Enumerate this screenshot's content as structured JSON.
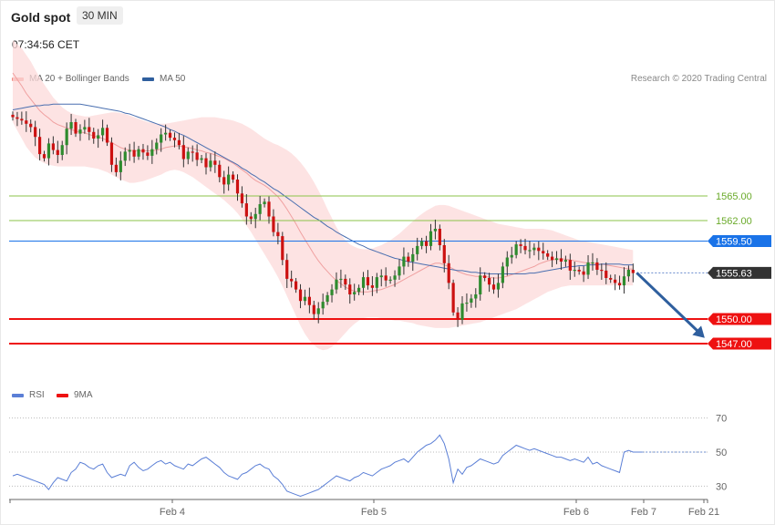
{
  "header": {
    "title": "Gold spot",
    "timeframe": "30 MIN",
    "time": "07:34:56 CET"
  },
  "legend": {
    "ma20_label": "MA 20 + Bollinger Bands",
    "ma20_color": "#f28b82",
    "ma50_label": "MA 50",
    "ma50_color": "#2f5f9e"
  },
  "credit": "Research © 2020 Trading Central",
  "chart_data": [
    {
      "type": "line",
      "title": "Gold spot",
      "x_labels": [
        "Feb 4",
        "Feb 5",
        "Feb 6",
        "Feb 7",
        "Feb 21"
      ],
      "ylim": [
        1540,
        1580
      ],
      "current_price": {
        "value": 1555.63,
        "label": "1555.63"
      },
      "levels": [
        {
          "value": 1565.0,
          "label": "1565.00",
          "kind": "resistance",
          "color": "#8bc34a"
        },
        {
          "value": 1562.0,
          "label": "1562.00",
          "kind": "resistance",
          "color": "#8bc34a"
        },
        {
          "value": 1559.5,
          "label": "1559.50",
          "kind": "pivot",
          "color": "#1a73e8"
        },
        {
          "value": 1550.0,
          "label": "1550.00",
          "kind": "support",
          "color": "#ee1111"
        },
        {
          "value": 1547.0,
          "label": "1547.00",
          "kind": "support",
          "color": "#ee1111"
        }
      ],
      "close": [
        1574.6,
        1574.4,
        1574.2,
        1573.8,
        1573.4,
        1572.2,
        1570.1,
        1569.6,
        1571.4,
        1570.6,
        1570.0,
        1571.2,
        1573.2,
        1574.0,
        1572.6,
        1573.1,
        1573.4,
        1572.8,
        1572.0,
        1572.4,
        1573.3,
        1571.5,
        1568.8,
        1567.9,
        1569.3,
        1570.4,
        1570.6,
        1569.8,
        1570.7,
        1570.3,
        1569.9,
        1570.7,
        1571.5,
        1572.5,
        1572.7,
        1572.1,
        1571.8,
        1571.2,
        1569.5,
        1570.4,
        1570.3,
        1569.4,
        1569.6,
        1568.5,
        1569.3,
        1568.8,
        1567.3,
        1566.4,
        1567.6,
        1567.0,
        1565.3,
        1564.1,
        1562.5,
        1562.2,
        1562.8,
        1564.0,
        1564.3,
        1562.5,
        1560.6,
        1560.1,
        1557.2,
        1554.9,
        1554.6,
        1553.6,
        1552.2,
        1552.7,
        1551.7,
        1550.6,
        1551.3,
        1552.1,
        1552.9,
        1553.6,
        1554.8,
        1554.9,
        1554.2,
        1553.0,
        1553.3,
        1553.8,
        1555.1,
        1554.1,
        1553.8,
        1555.1,
        1555.3,
        1554.7,
        1554.8,
        1555.3,
        1556.4,
        1557.6,
        1557.0,
        1557.9,
        1558.9,
        1559.5,
        1558.9,
        1560.7,
        1561.0,
        1559.0,
        1556.8,
        1554.4,
        1550.8,
        1549.9,
        1551.9,
        1552.0,
        1552.5,
        1553.0,
        1555.3,
        1555.0,
        1554.2,
        1553.6,
        1554.4,
        1556.4,
        1557.5,
        1557.8,
        1559.1,
        1558.9,
        1558.4,
        1558.4,
        1558.7,
        1558.3,
        1558.0,
        1557.6,
        1557.2,
        1557.4,
        1557.0,
        1557.2,
        1555.9,
        1556.0,
        1555.8,
        1555.4,
        1556.9,
        1556.9,
        1556.0,
        1555.9,
        1555.0,
        1554.8,
        1554.4,
        1554.1,
        1555.2,
        1556.0,
        1555.6
      ],
      "ma20": [
        1580,
        1579.2,
        1578.4,
        1577.5,
        1576.8,
        1576.1,
        1575.4,
        1574.9,
        1574.5,
        1574.0,
        1573.7,
        1573.5,
        1573.3,
        1573.1,
        1572.9,
        1572.8,
        1572.7,
        1572.5,
        1572.3,
        1572.2,
        1572.0,
        1571.8,
        1571.5,
        1571.2,
        1570.9,
        1570.7,
        1570.6,
        1570.5,
        1570.5,
        1570.5,
        1570.5,
        1570.5,
        1570.6,
        1570.7,
        1570.9,
        1571.0,
        1571.1,
        1571.1,
        1571.0,
        1570.9,
        1570.8,
        1570.6,
        1570.5,
        1570.3,
        1570.2,
        1570.0,
        1569.8,
        1569.6,
        1569.3,
        1569.0,
        1568.6,
        1568.2,
        1567.8,
        1567.3,
        1566.9,
        1566.6,
        1566.3,
        1565.9,
        1565.4,
        1564.9,
        1564.2,
        1563.4,
        1562.5,
        1561.6,
        1560.6,
        1559.7,
        1558.8,
        1557.9,
        1557.1,
        1556.4,
        1555.8,
        1555.2,
        1554.7,
        1554.3,
        1553.9,
        1553.6,
        1553.4,
        1553.3,
        1553.3,
        1553.3,
        1553.4,
        1553.5,
        1553.6,
        1553.8,
        1554.0,
        1554.2,
        1554.5,
        1554.8,
        1555.1,
        1555.4,
        1555.7,
        1556.0,
        1556.3,
        1556.6,
        1556.8,
        1556.8,
        1556.6,
        1556.4,
        1556.1,
        1555.8,
        1555.6,
        1555.4,
        1555.3,
        1555.2,
        1555.2,
        1555.2,
        1555.1,
        1555.0,
        1555.0,
        1555.1,
        1555.2,
        1555.4,
        1555.6,
        1555.8,
        1556.0,
        1556.2,
        1556.4,
        1556.7,
        1556.9,
        1557.1,
        1557.2,
        1557.3,
        1557.3,
        1557.3,
        1557.2,
        1557.1,
        1557.0,
        1556.9,
        1556.8,
        1556.8,
        1556.7,
        1556.7,
        1556.6,
        1556.5,
        1556.4,
        1556.3,
        1556.2,
        1556.1,
        1556.1
      ],
      "ma50": [
        1575.5,
        1575.6,
        1575.7,
        1575.8,
        1575.9,
        1576.0,
        1576.0,
        1576.1,
        1576.1,
        1576.2,
        1576.2,
        1576.2,
        1576.2,
        1576.2,
        1576.2,
        1576.2,
        1576.1,
        1576.0,
        1575.9,
        1575.8,
        1575.7,
        1575.6,
        1575.5,
        1575.4,
        1575.3,
        1575.1,
        1575.0,
        1574.8,
        1574.6,
        1574.4,
        1574.2,
        1574.0,
        1573.8,
        1573.6,
        1573.4,
        1573.1,
        1572.9,
        1572.6,
        1572.4,
        1572.1,
        1571.8,
        1571.5,
        1571.2,
        1570.9,
        1570.6,
        1570.3,
        1570.0,
        1569.7,
        1569.4,
        1569.1,
        1568.8,
        1568.4,
        1568.1,
        1567.7,
        1567.4,
        1567.0,
        1566.7,
        1566.3,
        1565.9,
        1565.6,
        1565.2,
        1564.8,
        1564.4,
        1564.0,
        1563.6,
        1563.2,
        1562.8,
        1562.4,
        1562.1,
        1561.7,
        1561.3,
        1561.0,
        1560.6,
        1560.3,
        1560.0,
        1559.7,
        1559.4,
        1559.1,
        1558.9,
        1558.6,
        1558.4,
        1558.2,
        1558.0,
        1557.8,
        1557.6,
        1557.4,
        1557.3,
        1557.1,
        1557.0,
        1556.9,
        1556.8,
        1556.7,
        1556.6,
        1556.5,
        1556.4,
        1556.3,
        1556.2,
        1556.1,
        1556.0,
        1555.9,
        1555.9,
        1555.8,
        1555.7,
        1555.7,
        1555.6,
        1555.6,
        1555.5,
        1555.5,
        1555.5,
        1555.5,
        1555.5,
        1555.5,
        1555.5,
        1555.5,
        1555.5,
        1555.6,
        1555.6,
        1555.7,
        1555.8,
        1555.9,
        1556.0,
        1556.1,
        1556.2,
        1556.3,
        1556.4,
        1556.4,
        1556.5,
        1556.5,
        1556.6,
        1556.6,
        1556.6,
        1556.7,
        1556.7,
        1556.7,
        1556.7,
        1556.7,
        1556.6,
        1556.6,
        1556.6
      ],
      "bb_upper": [
        1584,
        1583.5,
        1583.0,
        1582.2,
        1581.4,
        1580.4,
        1579.4,
        1578.6,
        1577.8,
        1577.0,
        1576.4,
        1575.8,
        1575.4,
        1575.1,
        1574.9,
        1574.8,
        1574.7,
        1574.7,
        1574.8,
        1574.9,
        1575.0,
        1575.1,
        1575.2,
        1575.2,
        1575.1,
        1575.0,
        1574.8,
        1574.6,
        1574.4,
        1574.2,
        1574.0,
        1573.9,
        1573.8,
        1573.8,
        1573.8,
        1573.9,
        1574.0,
        1574.1,
        1574.2,
        1574.3,
        1574.4,
        1574.5,
        1574.6,
        1574.6,
        1574.6,
        1574.6,
        1574.5,
        1574.4,
        1574.3,
        1574.2,
        1574.0,
        1573.8,
        1573.5,
        1573.2,
        1572.8,
        1572.4,
        1572.0,
        1571.7,
        1571.4,
        1571.2,
        1570.9,
        1570.6,
        1570.2,
        1569.7,
        1569.1,
        1568.4,
        1567.6,
        1566.7,
        1565.7,
        1564.6,
        1563.4,
        1562.3,
        1561.2,
        1560.3,
        1559.6,
        1559.1,
        1558.8,
        1558.6,
        1558.5,
        1558.5,
        1558.6,
        1558.8,
        1559.0,
        1559.3,
        1559.6,
        1560.0,
        1560.4,
        1560.9,
        1561.4,
        1561.9,
        1562.4,
        1562.8,
        1563.2,
        1563.5,
        1563.8,
        1563.9,
        1563.9,
        1563.8,
        1563.6,
        1563.4,
        1563.2,
        1563.0,
        1562.8,
        1562.6,
        1562.4,
        1562.2,
        1562.0,
        1561.8,
        1561.6,
        1561.5,
        1561.4,
        1561.3,
        1561.2,
        1561.1,
        1561.0,
        1561.0,
        1561.0,
        1561.0,
        1561.0,
        1560.9,
        1560.8,
        1560.6,
        1560.4,
        1560.2,
        1560.0,
        1559.8,
        1559.6,
        1559.5,
        1559.4,
        1559.3,
        1559.2,
        1559.1,
        1559.0,
        1558.9,
        1558.8,
        1558.7,
        1558.6,
        1558.5,
        1558.4
      ],
      "bb_lower": [
        1574,
        1573.0,
        1572.0,
        1571.0,
        1570.3,
        1569.7,
        1569.3,
        1569.0,
        1568.8,
        1568.7,
        1568.6,
        1568.6,
        1568.6,
        1568.6,
        1568.6,
        1568.6,
        1568.6,
        1568.5,
        1568.4,
        1568.3,
        1568.1,
        1567.9,
        1567.6,
        1567.3,
        1567.0,
        1566.8,
        1566.6,
        1566.6,
        1566.7,
        1566.8,
        1567.0,
        1567.2,
        1567.4,
        1567.6,
        1567.9,
        1568.1,
        1568.2,
        1568.1,
        1567.9,
        1567.6,
        1567.3,
        1566.9,
        1566.5,
        1566.1,
        1565.7,
        1565.3,
        1564.9,
        1564.5,
        1564.0,
        1563.5,
        1562.9,
        1562.2,
        1561.4,
        1560.6,
        1559.7,
        1558.8,
        1557.9,
        1557.0,
        1556.1,
        1555.1,
        1554.0,
        1552.8,
        1551.6,
        1550.4,
        1549.2,
        1548.2,
        1547.4,
        1546.8,
        1546.4,
        1546.2,
        1546.3,
        1546.6,
        1547.1,
        1547.7,
        1548.3,
        1548.9,
        1549.4,
        1549.8,
        1550.1,
        1550.2,
        1550.2,
        1550.2,
        1550.1,
        1550.0,
        1549.9,
        1549.8,
        1549.8,
        1549.7,
        1549.6,
        1549.5,
        1549.3,
        1549.2,
        1549.1,
        1549.0,
        1548.9,
        1548.9,
        1548.9,
        1548.9,
        1549.0,
        1549.1,
        1549.2,
        1549.3,
        1549.4,
        1549.5,
        1549.6,
        1549.8,
        1550.0,
        1550.2,
        1550.4,
        1550.6,
        1550.8,
        1551.0,
        1551.2,
        1551.5,
        1551.8,
        1552.1,
        1552.4,
        1552.7,
        1553.0,
        1553.3,
        1553.5,
        1553.7,
        1553.9,
        1554.0,
        1554.1,
        1554.1,
        1554.1,
        1554.1,
        1554.1,
        1554.1,
        1554.1,
        1554.1,
        1554.1,
        1554.1,
        1554.1,
        1554.1,
        1554.1,
        1554.1,
        1554.1
      ],
      "projection": {
        "from": 1555.63,
        "to": 1548.0
      }
    },
    {
      "type": "line",
      "legend": {
        "rsi_label": "RSI",
        "rsi_color": "#5b7fd6",
        "ma9_label": "9MA",
        "ma9_color": "#ee1111"
      },
      "ylim": [
        20,
        80
      ],
      "yticks": [
        {
          "value": 70,
          "label": "70"
        },
        {
          "value": 50,
          "label": "50"
        },
        {
          "value": 30,
          "label": "30"
        }
      ],
      "rsi": [
        36,
        37,
        36,
        35,
        34,
        33,
        32,
        31,
        28,
        32,
        35,
        34,
        33,
        38,
        40,
        44,
        43,
        41,
        40,
        42,
        43,
        38,
        35,
        36,
        37,
        36,
        42,
        44,
        41,
        39,
        40,
        42,
        44,
        45,
        43,
        44,
        42,
        41,
        40,
        43,
        42,
        44,
        46,
        47,
        45,
        43,
        41,
        38,
        36,
        35,
        34,
        37,
        38,
        40,
        42,
        43,
        41,
        40,
        36,
        34,
        31,
        27,
        26,
        25,
        24,
        25,
        26,
        27,
        28,
        30,
        32,
        34,
        36,
        35,
        34,
        33,
        35,
        36,
        38,
        37,
        36,
        38,
        40,
        41,
        42,
        44,
        45,
        46,
        44,
        47,
        50,
        52,
        54,
        55,
        57,
        60,
        55,
        46,
        32,
        40,
        37,
        41,
        42,
        44,
        46,
        45,
        44,
        43,
        44,
        48,
        50,
        52,
        54,
        53,
        52,
        51,
        52,
        51,
        50,
        49,
        48,
        47,
        47,
        46,
        45,
        46,
        45,
        44,
        47,
        43,
        44,
        42,
        41,
        40,
        39,
        38,
        50,
        51,
        50,
        50,
        50
      ],
      "ma9_level": 50
    }
  ]
}
